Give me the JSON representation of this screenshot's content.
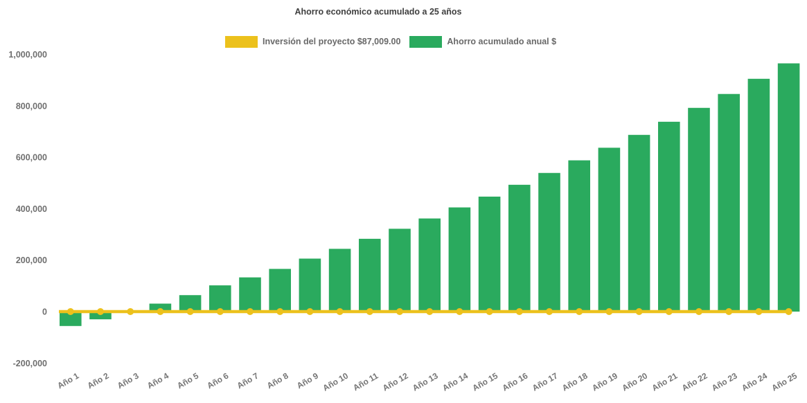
{
  "page": {
    "background": "#ffffff"
  },
  "header": {
    "title": "Ahorro económico acumulado a 25 años"
  },
  "legend": {
    "position": "top-center",
    "items": [
      {
        "series": "investment",
        "label": "Inversión del proyecto $87,009.00",
        "color": "#ecc11c"
      },
      {
        "series": "savings",
        "label": "Ahorro acumulado anual $",
        "color": "#2aaa5e"
      }
    ]
  },
  "chart_data": {
    "type": "bar",
    "title": "Ahorro económico acumulado a 25 años",
    "categories": [
      "Año 1",
      "Año 2",
      "Año 3",
      "Año 4",
      "Año 5",
      "Año 6",
      "Año 7",
      "Año 8",
      "Año 9",
      "Año 10",
      "Año 11",
      "Año 12",
      "Año 13",
      "Año 14",
      "Año 15",
      "Año 16",
      "Año 17",
      "Año 18",
      "Año 19",
      "Año 20",
      "Año 21",
      "Año 22",
      "Año 23",
      "Año 24",
      "Año 25"
    ],
    "series": [
      {
        "name": "Ahorro acumulado anual $",
        "type": "bar",
        "color": "#2aaa5e",
        "values": [
          -56000,
          -30000,
          2000,
          31000,
          64000,
          102000,
          133000,
          166000,
          206000,
          244000,
          283000,
          322000,
          362000,
          405000,
          447000,
          493000,
          539000,
          588000,
          637000,
          687000,
          738000,
          792000,
          846000,
          905000,
          965000
        ]
      },
      {
        "name": "Inversión del proyecto $87,009.00",
        "type": "line",
        "color": "#ecc11c",
        "marker": "circle",
        "values": [
          0,
          0,
          0,
          0,
          0,
          0,
          0,
          0,
          0,
          0,
          0,
          0,
          0,
          0,
          0,
          0,
          0,
          0,
          0,
          0,
          0,
          0,
          0,
          0,
          0
        ]
      }
    ],
    "yticks": {
      "values": [
        -200000,
        0,
        200000,
        400000,
        600000,
        800000,
        1000000
      ],
      "labels": [
        "-200,000",
        "0",
        "200,000",
        "400,000",
        "600,000",
        "800,000",
        "1,000,000"
      ]
    },
    "ylim": [
      -270000,
      1075000
    ],
    "xlabel": "",
    "ylabel": "",
    "xlabel_rotation_deg": -30,
    "grid": false,
    "legend_position": "top"
  }
}
